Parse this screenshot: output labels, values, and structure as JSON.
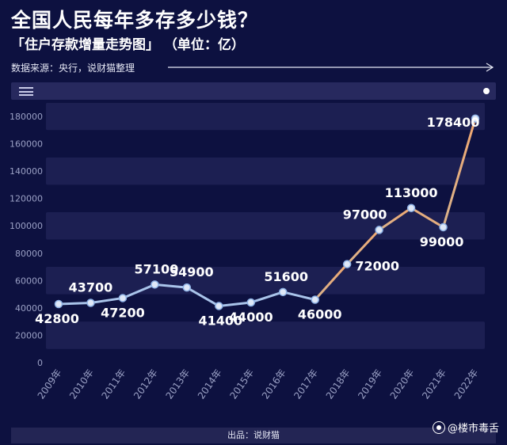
{
  "header": {
    "title": "全国人民每年多存多少钱？",
    "subtitle": "「住户存款增量走势图」 （单位：亿）",
    "source": "数据来源：央行，说财猫整理"
  },
  "footer": {
    "credit": "出品：说财猫",
    "watermark": "@楼市毒舌"
  },
  "icons": {
    "menu": "hamburger-menu-icon",
    "dot": "circle-dot-icon",
    "arrow": "arrow-right-icon",
    "logo": "watermark-logo-icon"
  },
  "colors": {
    "background": "#0d1140",
    "band": "#1c1f52",
    "line_early": "#a9c4ea",
    "line_late": "#f0a770",
    "axis_text": "#9aa0c4"
  },
  "chart_data": {
    "type": "line",
    "categories": [
      "2009年",
      "2010年",
      "2011年",
      "2012年",
      "2013年",
      "2014年",
      "2015年",
      "2016年",
      "2017年",
      "2018年",
      "2019年",
      "2020年",
      "2021年",
      "2022年"
    ],
    "values": [
      42800,
      43700,
      47200,
      57100,
      54900,
      41400,
      44000,
      51600,
      46000,
      72000,
      97000,
      113000,
      99000,
      178400
    ],
    "data_labels": [
      "42800",
      "43700",
      "47200",
      "57100",
      "54900",
      "41400",
      "44000",
      "51600",
      "46000",
      "72000",
      "97000",
      "113000",
      "99000",
      "178400"
    ],
    "yticks": [
      0,
      20000,
      40000,
      60000,
      80000,
      100000,
      120000,
      140000,
      160000,
      180000
    ],
    "ytick_labels": [
      "0",
      "20000",
      "40000",
      "60000",
      "80000",
      "100000",
      "120000",
      "140000",
      "160000",
      "180000"
    ],
    "ylim": [
      0,
      180000
    ],
    "grid": "horizontal bands",
    "legend": "none"
  }
}
